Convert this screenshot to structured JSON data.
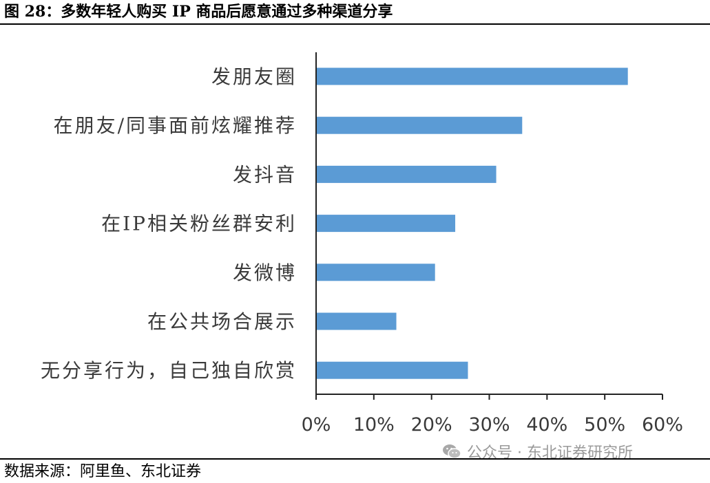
{
  "figure_title": "图 28：多数年轻人购买 IP 商品后愿意通过多种渠道分享",
  "source_note": "数据来源：阿里鱼、东北证券",
  "watermark_text": "公众号 · 东北证券研究所",
  "watermark_icon": "wechat-icon",
  "bar_color": "#5b9bd5",
  "chart_data": {
    "type": "bar",
    "orientation": "horizontal",
    "title": "",
    "xlabel": "",
    "ylabel": "",
    "categories": [
      "发朋友圈",
      "在朋友/同事面前炫耀推荐",
      "发抖音",
      "在IP相关粉丝群安利",
      "发微博",
      "在公共场合展示",
      "无分享行为，自己独自欣赏"
    ],
    "values": [
      54,
      35.7,
      31.2,
      24.1,
      20.6,
      13.9,
      26.3
    ],
    "xlim": [
      0,
      60
    ],
    "xticks": [
      0,
      10,
      20,
      30,
      40,
      50,
      60
    ],
    "tick_labels": [
      "0%",
      "10%",
      "20%",
      "30%",
      "40%",
      "50%",
      "60%"
    ],
    "grid": false,
    "legend": "none"
  }
}
